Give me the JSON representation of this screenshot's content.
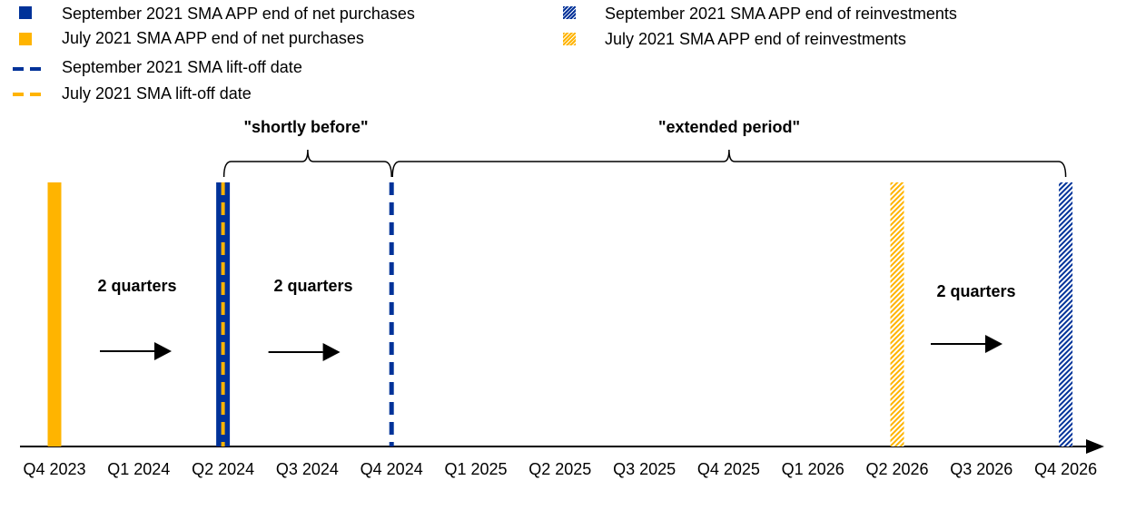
{
  "colors": {
    "blue": "#003299",
    "yellow": "#FFB400",
    "axis": "#000000"
  },
  "legend": [
    {
      "label": "September 2021 SMA APP end of net purchases",
      "style": "solid",
      "color": "#003299"
    },
    {
      "label": "July 2021 SMA APP end of net purchases",
      "style": "solid",
      "color": "#FFB400"
    },
    {
      "label": "September 2021 SMA lift-off date",
      "style": "dashed",
      "color": "#003299"
    },
    {
      "label": "July 2021 SMA lift-off date",
      "style": "dashed",
      "color": "#FFB400"
    },
    {
      "label": "September 2021 SMA APP end of reinvestments",
      "style": "hatched",
      "color": "#003299"
    },
    {
      "label": "July 2021 SMA APP end of reinvestments",
      "style": "hatched",
      "color": "#FFB400"
    }
  ],
  "chart_data": {
    "type": "timeline",
    "x_ticks": [
      "Q4 2023",
      "Q1 2024",
      "Q2 2024",
      "Q3 2024",
      "Q4 2024",
      "Q1 2025",
      "Q2 2025",
      "Q3 2025",
      "Q4 2025",
      "Q1 2026",
      "Q2 2026",
      "Q3 2026",
      "Q4 2026"
    ],
    "markers": [
      {
        "series": "July 2021 SMA APP end of net purchases",
        "quarter": "Q4 2023"
      },
      {
        "series": "September 2021 SMA APP end of net purchases",
        "quarter": "Q2 2024"
      },
      {
        "series": "July 2021 SMA lift-off date",
        "quarter": "Q2 2024"
      },
      {
        "series": "September 2021 SMA lift-off date",
        "quarter": "Q4 2024"
      },
      {
        "series": "July 2021 SMA APP end of reinvestments",
        "quarter": "Q2 2026"
      },
      {
        "series": "September 2021 SMA APP end of reinvestments",
        "quarter": "Q4 2026"
      }
    ],
    "braces": [
      {
        "label": "\"shortly before\"",
        "from": "Q2 2024",
        "to": "Q4 2024"
      },
      {
        "label": "\"extended period\"",
        "from": "Q4 2024",
        "to": "Q4 2026"
      }
    ],
    "arrows": [
      {
        "label": "2 quarters",
        "from": "Q4 2023",
        "to": "Q2 2024"
      },
      {
        "label": "2 quarters",
        "from": "Q2 2024",
        "to": "Q4 2024"
      },
      {
        "label": "2 quarters",
        "from": "Q2 2026",
        "to": "Q4 2026"
      }
    ]
  }
}
